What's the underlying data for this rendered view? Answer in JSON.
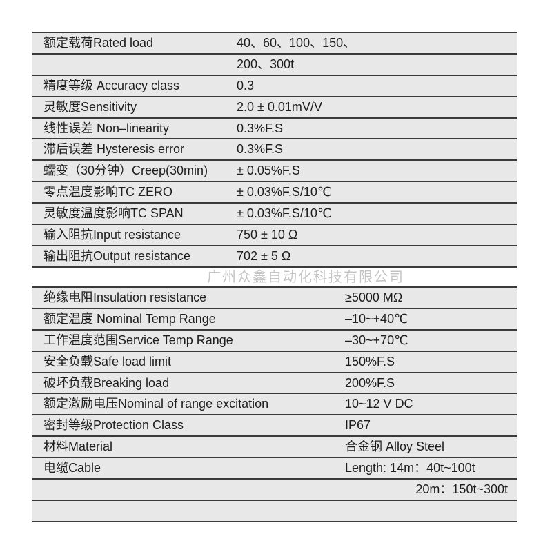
{
  "table1": [
    {
      "label": "额定载荷Rated load",
      "value": "40、60、100、150、"
    },
    {
      "label": "",
      "value": "200、300t"
    },
    {
      "label": "精度等级 Accuracy class",
      "value": "0.3"
    },
    {
      "label": "灵敏度Sensitivity",
      "value": "2.0 ± 0.01mV/V"
    },
    {
      "label": "线性误差 Non–linearity",
      "value": "0.3%F.S"
    },
    {
      "label": "滞后误差 Hysteresis error",
      "value": "0.3%F.S"
    },
    {
      "label": "蠕变（30分钟）Creep(30min)",
      "value": "± 0.05%F.S"
    },
    {
      "label": "零点温度影响TC ZERO",
      "value": "± 0.03%F.S/10℃"
    },
    {
      "label": "灵敏度温度影响TC SPAN",
      "value": "± 0.03%F.S/10℃"
    },
    {
      "label": "输入阻抗Input resistance",
      "value": "750 ± 10 Ω"
    },
    {
      "label": "输出阻抗Output resistance",
      "value": "702 ± 5 Ω"
    }
  ],
  "table2": [
    {
      "label": "绝缘电阻Insulation resistance",
      "value": "≥5000 MΩ"
    },
    {
      "label": "额定温度 Nominal Temp Range",
      "value": "–10~+40℃"
    },
    {
      "label": "工作温度范围Service Temp Range",
      "value": "–30~+70℃"
    },
    {
      "label": "安全负载Safe load limit",
      "value": "150%F.S"
    },
    {
      "label": "破坏负载Breaking load",
      "value": "200%F.S"
    },
    {
      "label": "额定激励电压Nominal of range excitation",
      "value": "10~12 V DC"
    },
    {
      "label": "密封等级Protection Class",
      "value": "IP67"
    },
    {
      "label": "材料Material",
      "value": "合金钢 Alloy Steel"
    },
    {
      "label": "电缆Cable",
      "value": "Length: 14m：40t~100t"
    },
    {
      "label": "",
      "value": "20m：150t~300t"
    },
    {
      "label": "",
      "value": ""
    }
  ],
  "watermark": "广州众鑫自动化科技有限公司"
}
